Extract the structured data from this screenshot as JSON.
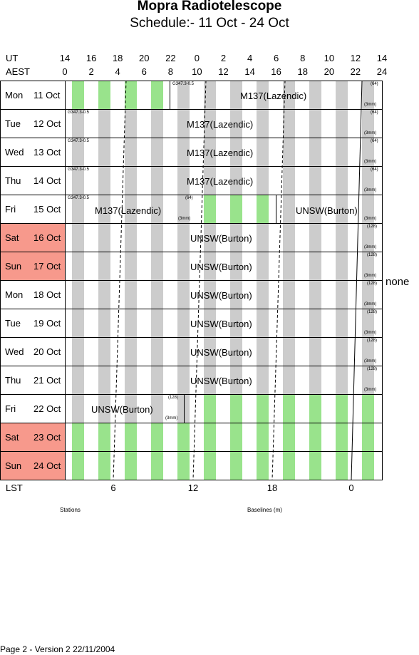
{
  "title": "Mopra Radiotelescope",
  "subtitle": "Schedule:- 11 Oct - 24 Oct",
  "axis": {
    "ut_label": "UT",
    "aest_label": "AEST",
    "ut_ticks": [
      "14",
      "16",
      "18",
      "20",
      "22",
      "0",
      "2",
      "4",
      "6",
      "8",
      "10",
      "12",
      "14"
    ],
    "aest_ticks": [
      "0",
      "2",
      "4",
      "6",
      "8",
      "10",
      "12",
      "14",
      "16",
      "18",
      "20",
      "22",
      "24"
    ],
    "lst_label": "LST",
    "lst_ticks": [
      "6",
      "12",
      "18",
      "0"
    ]
  },
  "days": [
    {
      "name": "Mon",
      "date": "11 Oct",
      "weekend": false
    },
    {
      "name": "Tue",
      "date": "12 Oct",
      "weekend": false
    },
    {
      "name": "Wed",
      "date": "13 Oct",
      "weekend": false
    },
    {
      "name": "Thu",
      "date": "14 Oct",
      "weekend": false
    },
    {
      "name": "Fri",
      "date": "15 Oct",
      "weekend": false
    },
    {
      "name": "Sat",
      "date": "16 Oct",
      "weekend": true
    },
    {
      "name": "Sun",
      "date": "17 Oct",
      "weekend": true
    },
    {
      "name": "Mon",
      "date": "18 Oct",
      "weekend": false
    },
    {
      "name": "Tue",
      "date": "19 Oct",
      "weekend": false
    },
    {
      "name": "Wed",
      "date": "20 Oct",
      "weekend": false
    },
    {
      "name": "Thu",
      "date": "21 Oct",
      "weekend": false
    },
    {
      "name": "Fri",
      "date": "22 Oct",
      "weekend": false
    },
    {
      "name": "Sat",
      "date": "23 Oct",
      "weekend": true
    },
    {
      "name": "Sun",
      "date": "24 Oct",
      "weekend": true
    }
  ],
  "projects": {
    "m137": "M137(Lazendic)",
    "unsw": "UNSW(Burton)",
    "g347": "G347.3-0.5",
    "n64": "(64)",
    "n128": "(128)",
    "mm3": "(3mm)"
  },
  "none_label": "none",
  "footer": {
    "stations": "Stations",
    "baselines": "Baselines (m)",
    "page_info": "Page 2 - Version 2  22/11/2004"
  },
  "colors": {
    "stripe_grey": "#cccccc",
    "stripe_green": "#99e38c",
    "weekend": "#f7998c"
  }
}
